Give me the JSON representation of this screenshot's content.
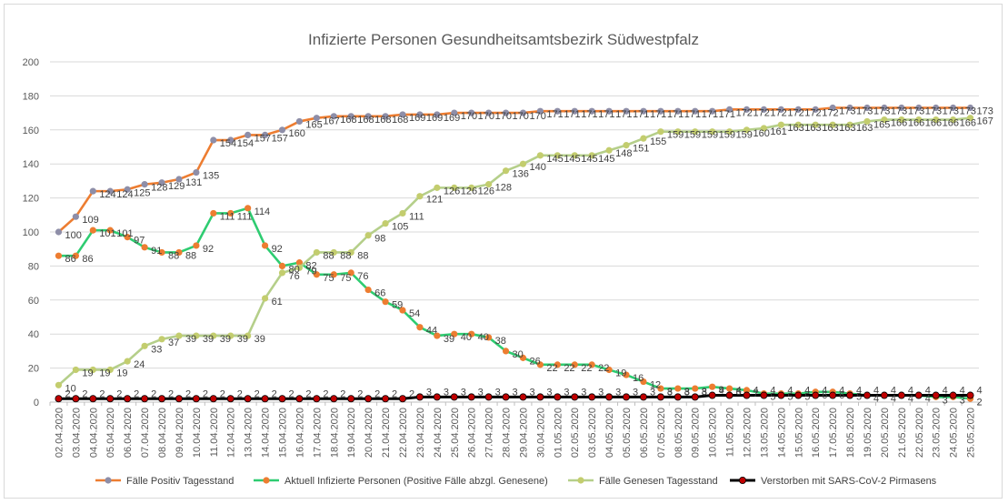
{
  "chart_data": {
    "type": "line",
    "title": "Infizierte Personen Gesundheitsamtsbezirk Südwestpfalz",
    "xlabel": "",
    "ylabel": "",
    "ylim": [
      0,
      200
    ],
    "yticks": [
      0,
      20,
      40,
      60,
      80,
      100,
      120,
      140,
      160,
      180,
      200
    ],
    "grid": "horizontal",
    "legend_position": "bottom",
    "categories": [
      "02.04.2020",
      "03.04.2020",
      "04.04.2020",
      "05.04.2020",
      "06.04.2020",
      "07.04.2020",
      "08.04.2020",
      "09.04.2020",
      "10.04.2020",
      "11.04.2020",
      "12.04.2020",
      "13.04.2020",
      "14.04.2020",
      "15.04.2020",
      "16.04.2020",
      "17.04.2020",
      "18.04.2020",
      "19.04.2020",
      "20.04.2020",
      "21.04.2020",
      "22.04.2020",
      "23.04.2020",
      "24.04.2020",
      "25.04.2020",
      "26.04.2020",
      "27.04.2020",
      "28.04.2020",
      "29.04.2020",
      "30.04.2020",
      "01.05.2020",
      "02.05.2020",
      "03.05.2020",
      "04.05.2020",
      "05.05.2020",
      "06.05.2020",
      "07.05.2020",
      "08.05.2020",
      "09.05.2020",
      "10.05.2020",
      "11.05.2020",
      "12.05.2020",
      "13.05.2020",
      "14.05.2020",
      "15.05.2020",
      "16.05.2020",
      "17.05.2020",
      "18.05.2020",
      "19.05.2020",
      "20.05.2020",
      "21.05.2020",
      "22.05.2020",
      "23.05.2020",
      "24.05.2020",
      "25.05.2020"
    ],
    "series": [
      {
        "name": "Fälle Positiv Tagesstand",
        "line_color": "#ed7d31",
        "marker_color": "#8e8ea8",
        "values": [
          100,
          109,
          124,
          124,
          125,
          128,
          129,
          131,
          135,
          154,
          154,
          157,
          157,
          160,
          165,
          167,
          168,
          168,
          168,
          168,
          169,
          169,
          169,
          170,
          170,
          170,
          170,
          170,
          171,
          171,
          171,
          171,
          171,
          171,
          171,
          171,
          171,
          171,
          171,
          172,
          172,
          172,
          172,
          172,
          172,
          173,
          173,
          173,
          173,
          173,
          173,
          173,
          173,
          173
        ]
      },
      {
        "name": "Aktuell Infizierte Personen (Positive Fälle abzgl. Genesene)",
        "line_color": "#2ecc71",
        "marker_color": "#ed7d31",
        "values": [
          86,
          86,
          101,
          101,
          97,
          91,
          88,
          88,
          92,
          111,
          111,
          114,
          92,
          80,
          82,
          75,
          75,
          76,
          66,
          59,
          54,
          44,
          39,
          40,
          40,
          38,
          30,
          26,
          22,
          22,
          22,
          22,
          19,
          16,
          12,
          8,
          8,
          8,
          9,
          8,
          7,
          5,
          5,
          5,
          6,
          6,
          5,
          4,
          4,
          4,
          4,
          3,
          3,
          2
        ]
      },
      {
        "name": "Fälle Genesen Tagesstand",
        "line_color": "#b5cf8a",
        "marker_color": "#c3cd6e",
        "values": [
          10,
          19,
          19,
          19,
          24,
          33,
          37,
          39,
          39,
          39,
          39,
          39,
          61,
          76,
          79,
          88,
          88,
          88,
          98,
          105,
          111,
          121,
          126,
          126,
          126,
          128,
          136,
          140,
          145,
          145,
          145,
          145,
          148,
          151,
          155,
          159,
          159,
          159,
          159,
          159,
          160,
          161,
          163,
          163,
          163,
          163,
          163,
          165,
          166,
          166,
          166,
          166,
          166,
          167
        ]
      },
      {
        "name": "Verstorben mit SARS-CoV-2 Pirmasens",
        "line_color": "#000000",
        "marker_color": "#c00000",
        "values": [
          2,
          2,
          2,
          2,
          2,
          2,
          2,
          2,
          2,
          2,
          2,
          2,
          2,
          2,
          2,
          2,
          2,
          2,
          2,
          2,
          2,
          3,
          3,
          3,
          3,
          3,
          3,
          3,
          3,
          3,
          3,
          3,
          3,
          3,
          3,
          3,
          3,
          3,
          4,
          4,
          4,
          4,
          4,
          4,
          4,
          4,
          4,
          4,
          4,
          4,
          4,
          4,
          4,
          4
        ]
      }
    ]
  }
}
